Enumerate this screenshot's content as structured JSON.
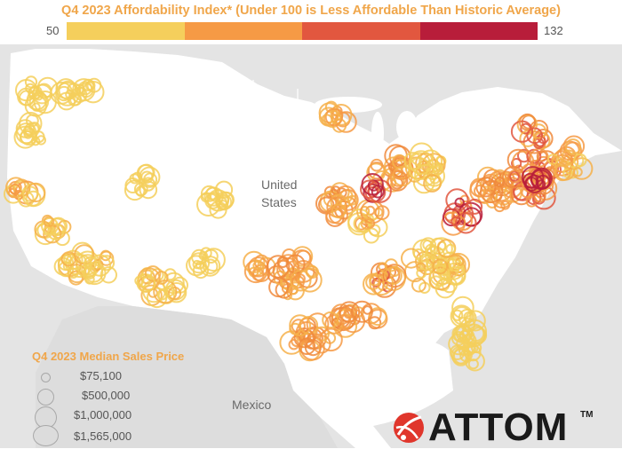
{
  "title": "Q4 2023 Affordability Index* (Under 100 is Less Affordable Than Historic Average)",
  "scale": {
    "min_label": "50",
    "max_label": "132",
    "colors": [
      "#f5cf5c",
      "#f69a45",
      "#e2573f",
      "#b81d3a"
    ]
  },
  "labels": {
    "us_line1": "United",
    "us_line2": "States",
    "mexico": "Mexico"
  },
  "legend": {
    "title": "Q4 2023 Median Sales Price",
    "items": [
      {
        "label": "$75,100"
      },
      {
        "label": "$500,000"
      },
      {
        "label": "$1,000,000"
      },
      {
        "label": "$1,565,000"
      }
    ]
  },
  "logo": {
    "text": "ATTOM",
    "tm": "TM"
  }
}
